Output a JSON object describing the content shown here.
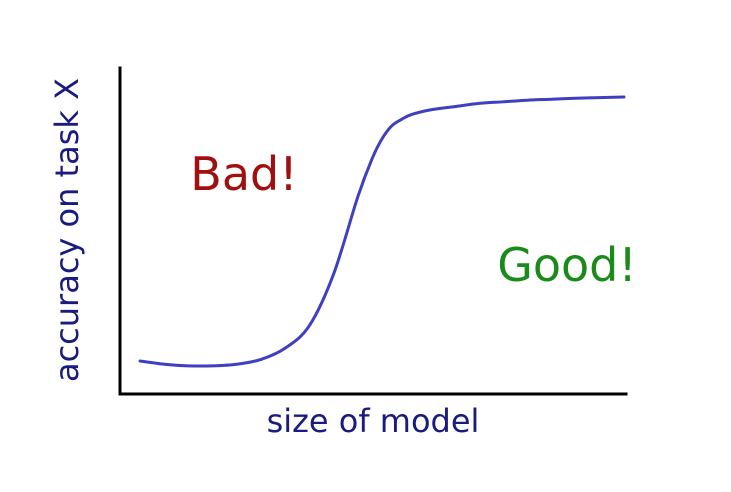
{
  "chart_data": {
    "type": "line",
    "title": "",
    "xlabel": "size of model",
    "ylabel": "accuracy on task X",
    "xlim": [
      0,
      1
    ],
    "ylim": [
      0,
      1
    ],
    "grid": false,
    "series": [
      {
        "color": "#3f3fc2",
        "x": [
          0.0,
          0.05,
          0.1,
          0.15,
          0.2,
          0.25,
          0.3,
          0.35,
          0.4,
          0.45,
          0.48,
          0.5,
          0.52,
          0.54,
          0.56,
          0.6,
          0.65,
          0.7,
          0.75,
          0.8,
          0.85,
          0.9,
          0.95,
          1.0
        ],
        "y": [
          0.09,
          0.08,
          0.075,
          0.075,
          0.08,
          0.095,
          0.13,
          0.2,
          0.36,
          0.6,
          0.72,
          0.78,
          0.82,
          0.84,
          0.855,
          0.87,
          0.88,
          0.89,
          0.895,
          0.9,
          0.903,
          0.906,
          0.908,
          0.91
        ]
      }
    ],
    "annotations": [
      {
        "text": "Bad!",
        "color": "#a01010"
      },
      {
        "text": "Good!",
        "color": "#1a8a1a"
      }
    ],
    "label_color": "#1a1a80"
  }
}
